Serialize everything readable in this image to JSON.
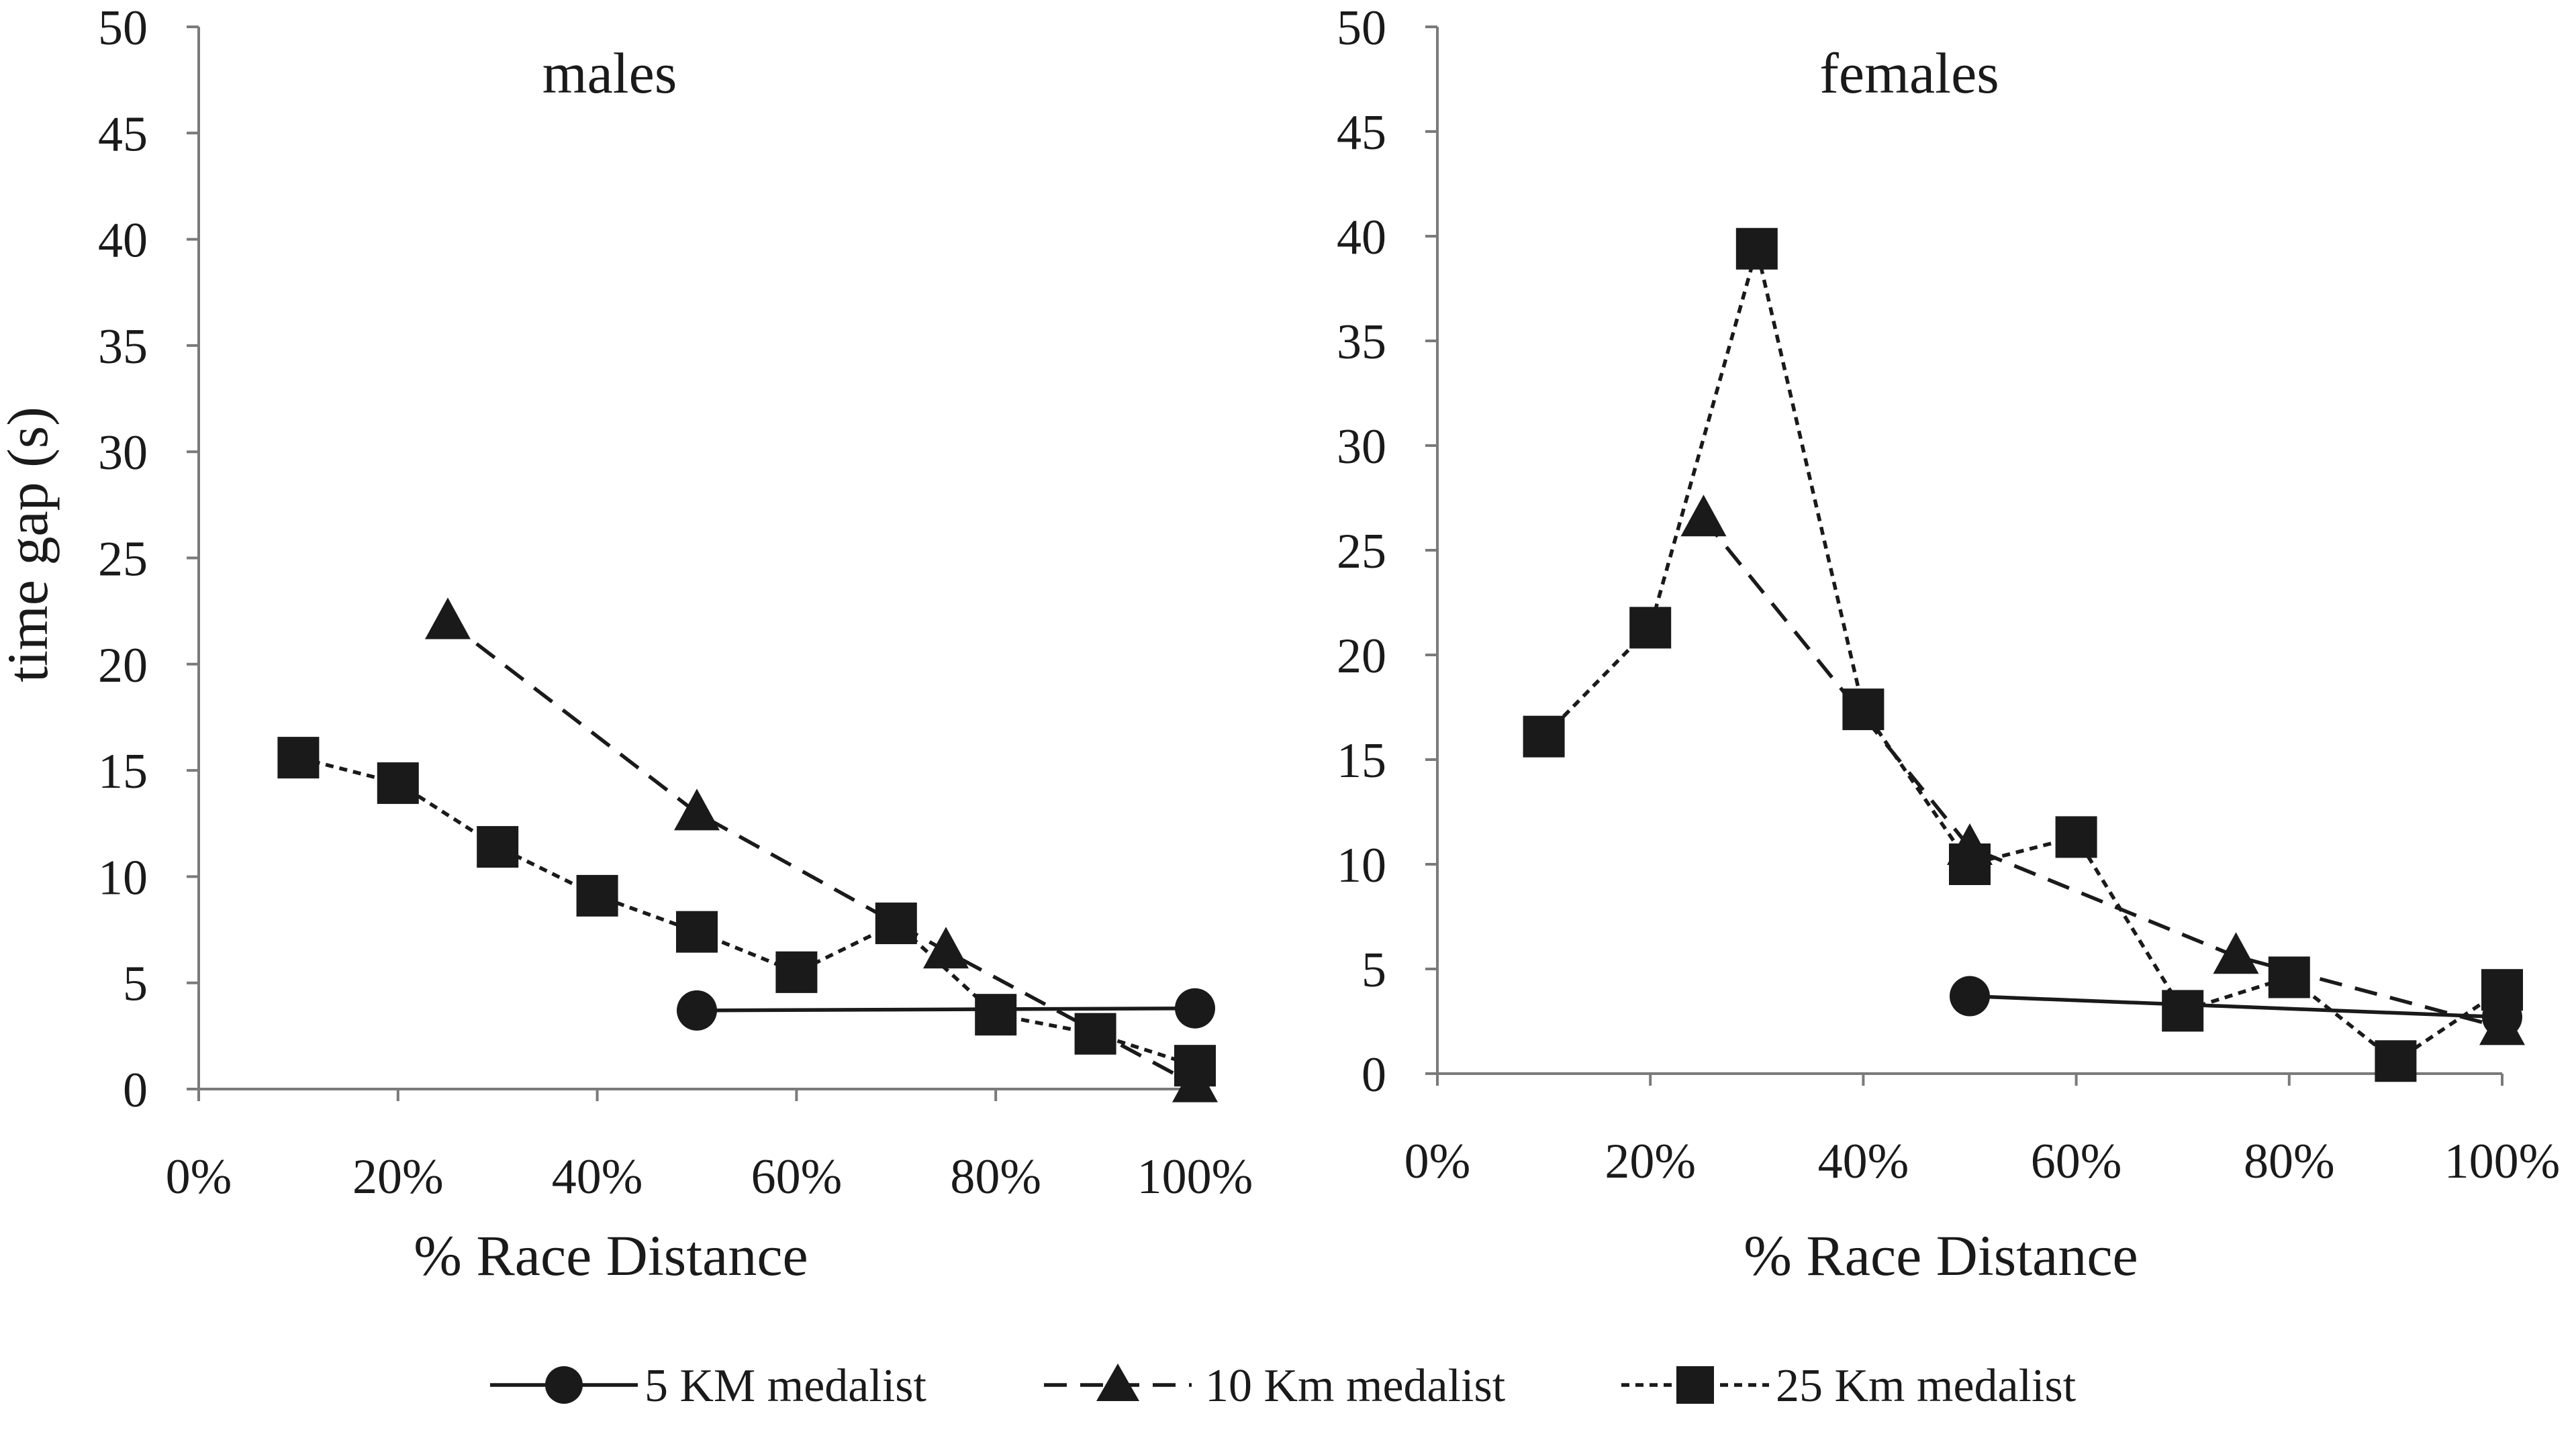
{
  "chart_data": [
    {
      "type": "line",
      "title": "males",
      "xlabel": "% Race Distance",
      "ylabel": "time gap (s)",
      "xlim": [
        0,
        100
      ],
      "ylim": [
        0,
        50
      ],
      "x_ticks": [
        "0%",
        "20%",
        "40%",
        "60%",
        "80%",
        "100%"
      ],
      "y_ticks": [
        "0",
        "5",
        "10",
        "15",
        "20",
        "25",
        "30",
        "35",
        "40",
        "45",
        "50"
      ],
      "series": [
        {
          "name": "5 KM medalist",
          "x": [
            50,
            100
          ],
          "values": [
            3.7,
            3.8
          ]
        },
        {
          "name": "10 Km medalist",
          "x": [
            25,
            50,
            75,
            100
          ],
          "values": [
            22.0,
            13.0,
            6.5,
            0.2
          ]
        },
        {
          "name": "25 Km medalist",
          "x": [
            10,
            20,
            30,
            40,
            50,
            60,
            70,
            80,
            90,
            100
          ],
          "values": [
            15.6,
            14.4,
            11.4,
            9.1,
            7.4,
            5.5,
            7.8,
            3.5,
            2.6,
            1.1
          ]
        }
      ]
    },
    {
      "type": "line",
      "title": "females",
      "xlabel": "% Race Distance",
      "ylabel": "",
      "xlim": [
        0,
        100
      ],
      "ylim": [
        0,
        50
      ],
      "x_ticks": [
        "0%",
        "20%",
        "40%",
        "60%",
        "80%",
        "100%"
      ],
      "y_ticks": [
        "0",
        "5",
        "10",
        "15",
        "20",
        "25",
        "30",
        "35",
        "40",
        "45",
        "50"
      ],
      "series": [
        {
          "name": "5 KM medalist",
          "x": [
            50,
            100
          ],
          "values": [
            3.7,
            2.7
          ]
        },
        {
          "name": "10 Km medalist",
          "x": [
            25,
            50,
            75,
            100
          ],
          "values": [
            26.5,
            10.8,
            5.6,
            2.2
          ]
        },
        {
          "name": "25 Km medalist",
          "x": [
            10,
            20,
            30,
            40,
            50,
            60,
            70,
            80,
            90,
            100
          ],
          "values": [
            16.1,
            21.3,
            39.4,
            17.4,
            10.0,
            11.3,
            3.0,
            4.6,
            0.6,
            4.0
          ]
        }
      ]
    }
  ],
  "legend": {
    "items": [
      {
        "label": "5 KM medalist",
        "line": "solid",
        "marker": "circle"
      },
      {
        "label": "10 Km medalist",
        "line": "dashed",
        "marker": "triangle"
      },
      {
        "label": "25 Km medalist",
        "line": "dotted",
        "marker": "square"
      }
    ]
  }
}
